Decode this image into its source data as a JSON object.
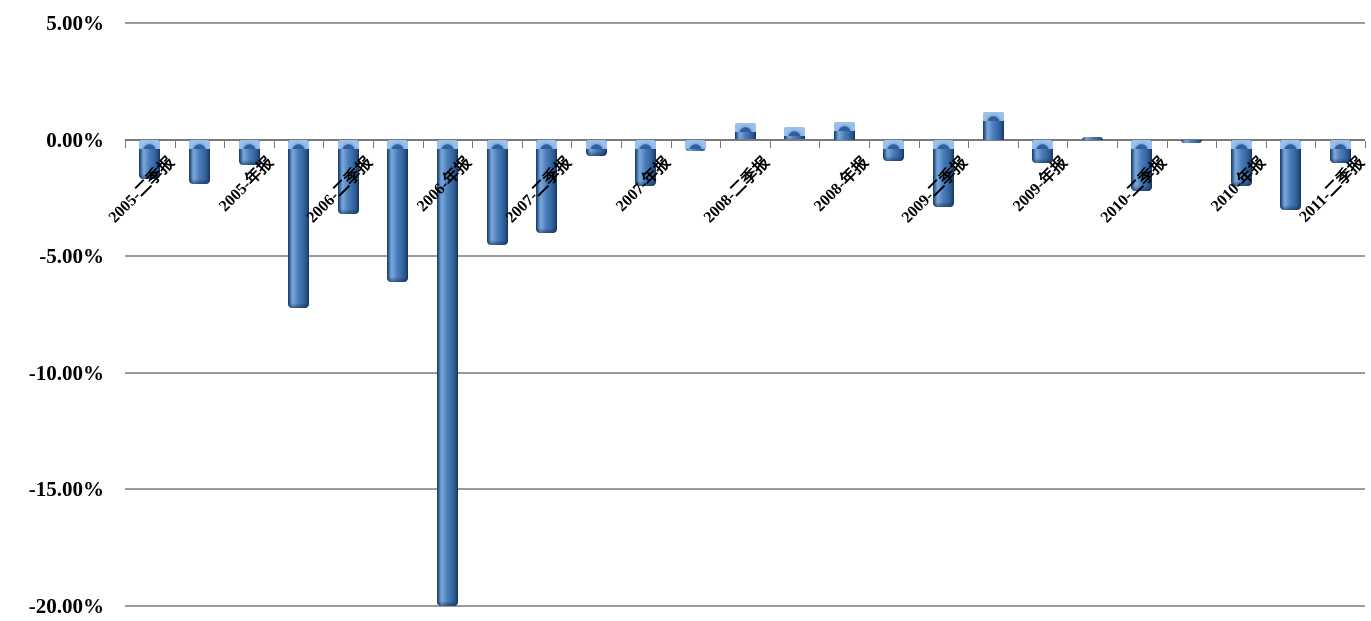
{
  "chart_data": {
    "type": "bar",
    "title": "",
    "xlabel": "",
    "ylabel": "",
    "ylim": [
      -20,
      5
    ],
    "y_tick_labels": [
      "5.00%",
      "0.00%",
      "-5.00%",
      "-10.00%",
      "-15.00%",
      "-20.00%"
    ],
    "y_tick_values": [
      5,
      0,
      -5,
      -10,
      -15,
      -20
    ],
    "grid": "horizontal gridlines on",
    "legend": "none",
    "value_unit": "percent",
    "bar_color": "#4a7fbb",
    "bar_edge_color": "#173a61",
    "axis_color": "#7a7a7a",
    "gridline_color": "#9b9b9b",
    "bars": [
      {
        "label": "2005-二季报",
        "value": -1.7
      },
      {
        "label": "",
        "value": -1.9
      },
      {
        "label": "2005-年报",
        "value": -1.1
      },
      {
        "label": "",
        "value": -7.2
      },
      {
        "label": "2006-二季报",
        "value": -3.2
      },
      {
        "label": "",
        "value": -6.1
      },
      {
        "label": "2006-年报",
        "value": -20.0
      },
      {
        "label": "",
        "value": -4.5
      },
      {
        "label": "2007-二季报",
        "value": -4.0
      },
      {
        "label": "",
        "value": -0.7
      },
      {
        "label": "2007-年报",
        "value": -2.0
      },
      {
        "label": "",
        "value": -0.5
      },
      {
        "label": "2008-二季报",
        "value": 0.7
      },
      {
        "label": "",
        "value": 0.55
      },
      {
        "label": "2008-年报",
        "value": 0.75
      },
      {
        "label": "",
        "value": -0.9
      },
      {
        "label": "2009-二季报",
        "value": -2.9
      },
      {
        "label": "",
        "value": 1.2
      },
      {
        "label": "2009-年报",
        "value": -1.0
      },
      {
        "label": "",
        "value": 0.1
      },
      {
        "label": "2010-二季报",
        "value": -2.2
      },
      {
        "label": "",
        "value": -0.15
      },
      {
        "label": "2010-年报",
        "value": -2.0
      },
      {
        "label": "",
        "value": -3.0
      },
      {
        "label": "2011-二季报",
        "value": -1.0
      }
    ]
  }
}
